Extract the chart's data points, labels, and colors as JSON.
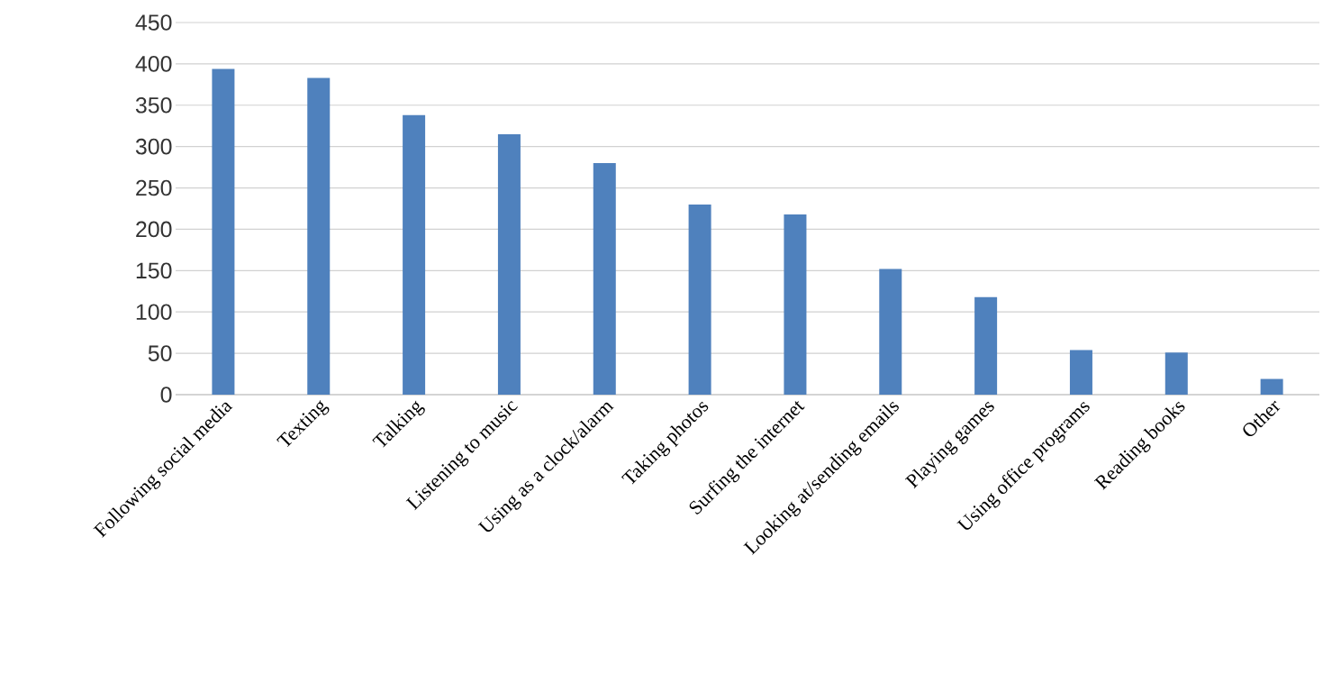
{
  "chart_data": {
    "type": "bar",
    "categories": [
      "Following social media",
      "Texting",
      "Talking",
      "Listening to music",
      "Using as a clock/alarm",
      "Taking photos",
      "Surfing the internet",
      "Looking at/sending emails",
      "Playing games",
      "Using office programs",
      "Reading books",
      "Other"
    ],
    "values": [
      394,
      383,
      338,
      315,
      280,
      230,
      218,
      152,
      118,
      54,
      51,
      19
    ],
    "color": "#4f81bd",
    "ylim": [
      0,
      450
    ],
    "yticks": [
      0,
      50,
      100,
      150,
      200,
      250,
      300,
      350,
      400,
      450
    ],
    "grid": "y"
  }
}
